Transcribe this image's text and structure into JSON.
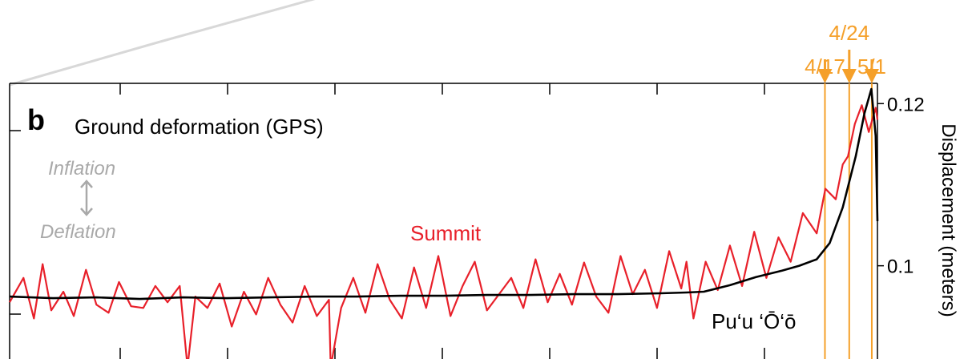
{
  "panel": {
    "letter": "b",
    "title": "Ground deformation (GPS)",
    "inflation_label": "Inflation",
    "deflation_label": "Deflation",
    "updown_arrow_icon": "double-headed-vertical-arrow"
  },
  "colors": {
    "summit": "#e8202a",
    "puu_oo": "#000000",
    "event": "#f5a02a",
    "muted": "#a9a9a9",
    "connector": "#d8d8d8"
  },
  "chart_data": {
    "type": "line",
    "ylabel": "Displacement (meters)",
    "ylim": [
      0.0885,
      0.1225
    ],
    "yticks": [
      0.1,
      0.12
    ],
    "ytick_labels": [
      "0.1",
      "0.12"
    ],
    "events": [
      {
        "label": "4/17",
        "x": 0.9395
      },
      {
        "label": "4/24",
        "x": 0.9675
      },
      {
        "label": "5/1",
        "x": 0.9935
      }
    ],
    "series": [
      {
        "name": "Summit",
        "color": "#e8202a",
        "x": [
          0.0,
          0.016,
          0.028,
          0.038,
          0.048,
          0.062,
          0.074,
          0.088,
          0.1,
          0.114,
          0.126,
          0.14,
          0.154,
          0.168,
          0.182,
          0.196,
          0.205,
          0.214,
          0.228,
          0.242,
          0.256,
          0.27,
          0.284,
          0.298,
          0.312,
          0.326,
          0.34,
          0.354,
          0.368,
          0.37,
          0.382,
          0.396,
          0.41,
          0.424,
          0.438,
          0.452,
          0.466,
          0.48,
          0.494,
          0.508,
          0.522,
          0.536,
          0.55,
          0.564,
          0.578,
          0.592,
          0.606,
          0.62,
          0.634,
          0.648,
          0.662,
          0.676,
          0.69,
          0.704,
          0.718,
          0.732,
          0.746,
          0.76,
          0.774,
          0.78,
          0.788,
          0.802,
          0.816,
          0.83,
          0.844,
          0.858,
          0.872,
          0.886,
          0.9,
          0.914,
          0.93,
          0.94,
          0.952,
          0.96,
          0.966,
          0.974,
          0.982,
          0.99,
          0.998,
          1.0
        ],
        "y": [
          0.0955,
          0.0985,
          0.0935,
          0.1002,
          0.0945,
          0.0968,
          0.0938,
          0.0995,
          0.0952,
          0.0942,
          0.098,
          0.095,
          0.0948,
          0.0975,
          0.0955,
          0.0975,
          0.0875,
          0.0962,
          0.0948,
          0.0978,
          0.0925,
          0.0968,
          0.094,
          0.0985,
          0.0952,
          0.093,
          0.0975,
          0.0938,
          0.0958,
          0.0875,
          0.0948,
          0.0985,
          0.0942,
          0.1002,
          0.0958,
          0.0935,
          0.0998,
          0.0948,
          0.1012,
          0.0938,
          0.0975,
          0.1005,
          0.0945,
          0.0965,
          0.0985,
          0.0948,
          0.1008,
          0.0955,
          0.099,
          0.0952,
          0.1004,
          0.0962,
          0.0942,
          0.1012,
          0.0965,
          0.0995,
          0.0948,
          0.1018,
          0.0972,
          0.1005,
          0.0935,
          0.1005,
          0.097,
          0.1025,
          0.0975,
          0.1042,
          0.0985,
          0.1035,
          0.1005,
          0.1065,
          0.104,
          0.1095,
          0.1082,
          0.1125,
          0.1135,
          0.1175,
          0.1198,
          0.1165,
          0.1195,
          0.118
        ]
      },
      {
        "name": "Pu‘u ‘Ō‘ō",
        "color": "#000000",
        "x": [
          0.0,
          0.05,
          0.1,
          0.15,
          0.2,
          0.25,
          0.3,
          0.35,
          0.4,
          0.45,
          0.5,
          0.55,
          0.6,
          0.65,
          0.7,
          0.75,
          0.78,
          0.8,
          0.83,
          0.86,
          0.89,
          0.91,
          0.93,
          0.945,
          0.96,
          0.975,
          0.985,
          0.993,
          0.998,
          1.0
        ],
        "y": [
          0.0962,
          0.096,
          0.0961,
          0.0959,
          0.0961,
          0.096,
          0.0961,
          0.0962,
          0.0962,
          0.0963,
          0.0963,
          0.0964,
          0.0964,
          0.0965,
          0.0965,
          0.0966,
          0.0967,
          0.0968,
          0.0976,
          0.0986,
          0.0994,
          0.1,
          0.1008,
          0.1028,
          0.1072,
          0.1135,
          0.1188,
          0.1218,
          0.116,
          0.1055
        ]
      }
    ]
  }
}
